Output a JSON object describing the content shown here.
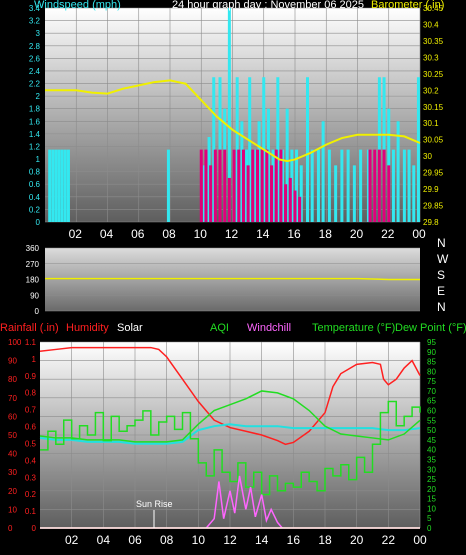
{
  "colors": {
    "wind": "#33e8f0",
    "wind_avg": "#ff00ff",
    "gust_fill": "#e0007a",
    "baro": "#f0f000",
    "dir": "#f0f000",
    "rain": "#ff2020",
    "humidity": "#ff2020",
    "solar": "#ffffff",
    "aqi": "#22dd22",
    "windchill": "#ff66ff",
    "temperature": "#22dd22",
    "dewpoint": "#22e0e0",
    "dew_label": "#22dd22"
  },
  "hour_labels": [
    "02",
    "04",
    "06",
    "08",
    "10",
    "12",
    "14",
    "16",
    "18",
    "20",
    "22",
    "00"
  ],
  "hour_positions": [
    2,
    4,
    6,
    8,
    10,
    12,
    14,
    16,
    18,
    20,
    22,
    24
  ],
  "chart_data": [
    {
      "type": "bar",
      "title": "24 hour graph day : November 06 2025",
      "ylabel": "Windspeed (mph)",
      "y2label": "Barometer (.in)",
      "ylim": [
        0,
        3.4
      ],
      "y2lim": [
        29.8,
        30.45
      ],
      "yticks": [
        "0",
        "0.2",
        "0.4",
        "0.6",
        "0.8",
        "1",
        "1.2",
        "1.4",
        "1.6",
        "1.8",
        "2",
        "2.2",
        "2.4",
        "2.6",
        "2.8",
        "3",
        "3.2",
        "3.4"
      ],
      "y2ticks": [
        "29.8",
        "29.85",
        "29.9",
        "29.95",
        "30",
        "30.05",
        "30.1",
        "30.15",
        "30.2",
        "30.25",
        "30.3",
        "30.35",
        "30.4",
        "30.45"
      ],
      "grid": true,
      "series": [
        {
          "kind": "gust",
          "x": [
            0.3,
            0.5,
            0.7,
            0.9,
            1.1,
            1.3,
            1.5,
            7.9,
            10.2,
            10.5,
            10.8,
            11.2,
            11.5,
            11.8,
            12.1,
            12.3,
            12.6,
            12.9,
            13.1,
            13.4,
            13.7,
            14.0,
            14.3,
            14.6,
            14.9,
            15.2,
            15.5,
            15.8,
            16.1,
            16.4,
            16.8,
            17.1,
            17.5,
            17.8,
            18.2,
            18.6,
            19.0,
            19.4,
            19.8,
            20.2,
            20.7,
            21.1,
            21.4,
            21.7,
            22.0,
            22.3,
            22.6,
            23.0,
            23.3,
            23.6,
            23.9
          ],
          "values": [
            1.15,
            1.15,
            1.15,
            1.15,
            1.15,
            1.15,
            1.15,
            1.15,
            0.9,
            1.35,
            2.3,
            2.3,
            1.8,
            3.4,
            1.15,
            2.3,
            1.6,
            1.15,
            2.3,
            1.15,
            1.6,
            2.3,
            1.8,
            1.15,
            2.3,
            1.15,
            1.8,
            1.15,
            1.15,
            0.9,
            2.3,
            1.15,
            1.15,
            1.6,
            1.15,
            0.9,
            1.15,
            1.15,
            0.9,
            1.15,
            1.15,
            1.15,
            2.3,
            2.3,
            1.8,
            1.15,
            1.6,
            1.15,
            1.15,
            0.9,
            2.3
          ]
        },
        {
          "kind": "avg",
          "x": [
            10.0,
            10.3,
            10.6,
            10.9,
            11.2,
            11.5,
            11.8,
            12.1,
            12.4,
            12.7,
            13.0,
            13.3,
            13.6,
            13.9,
            14.2,
            14.5,
            14.8,
            15.1,
            15.4,
            15.7,
            16.0,
            16.3,
            20.8,
            21.1,
            21.4,
            21.7,
            22.0
          ],
          "values": [
            1.15,
            1.15,
            0.9,
            1.15,
            1.15,
            1.15,
            0.7,
            1.15,
            1.15,
            1.15,
            0.9,
            1.15,
            1.15,
            1.15,
            1.15,
            0.9,
            1.15,
            1.15,
            0.6,
            0.7,
            0.5,
            0.4,
            1.15,
            1.15,
            1.15,
            1.15,
            0.9
          ]
        },
        {
          "kind": "baro",
          "x": [
            0,
            1,
            2,
            3,
            4,
            5,
            6,
            7,
            8,
            8.5,
            9,
            10,
            11,
            12,
            13,
            14,
            15,
            15.5,
            16,
            17,
            18,
            19,
            20,
            21,
            22,
            23,
            23.5,
            24
          ],
          "values": [
            30.2,
            30.2,
            30.2,
            30.193,
            30.19,
            30.205,
            30.215,
            30.225,
            30.23,
            30.225,
            30.22,
            30.17,
            30.12,
            30.08,
            30.05,
            30.02,
            29.99,
            29.985,
            29.99,
            30.01,
            30.035,
            30.055,
            30.065,
            30.065,
            30.065,
            30.06,
            30.05,
            30.04
          ]
        }
      ]
    },
    {
      "type": "line",
      "ylabel": "",
      "ylim": [
        0,
        360
      ],
      "yticks": [
        "0",
        "90",
        "180",
        "270",
        "360"
      ],
      "compass": [
        "N",
        "W",
        "S",
        "E",
        "N"
      ],
      "x": [
        0,
        12,
        20,
        22,
        24
      ],
      "values": [
        185,
        185,
        185,
        180,
        180
      ]
    },
    {
      "type": "line",
      "legend": [
        "Rainfall (.in)",
        "Humidity",
        "Solar",
        "AQI",
        "Windchill",
        "Temperature (°F)",
        "Dew Point (°F)"
      ],
      "y1lim": [
        0,
        1.1
      ],
      "y1ticks": [
        "0",
        "0.1",
        "0.2",
        "0.3",
        "0.4",
        "0.5",
        "0.6",
        "0.7",
        "0.8",
        "0.9",
        "1",
        "1.1"
      ],
      "y2lim": [
        0,
        100
      ],
      "y2ticks": [
        "0",
        "10",
        "20",
        "30",
        "40",
        "50",
        "60",
        "70",
        "80",
        "90",
        "100"
      ],
      "y3lim": [
        0,
        95
      ],
      "y3ticks": [
        "0",
        "5",
        "10",
        "15",
        "20",
        "25",
        "30",
        "35",
        "40",
        "45",
        "50",
        "55",
        "60",
        "65",
        "70",
        "75",
        "80",
        "85",
        "90",
        "95"
      ],
      "annotation": "Sun Rise",
      "annotation_x": 7.2,
      "grid": true,
      "series": [
        {
          "name": "Humidity",
          "axis": "y2",
          "x": [
            0,
            1,
            2,
            3,
            4,
            5,
            6,
            7,
            7.5,
            8,
            9,
            10,
            11,
            12,
            13,
            14,
            15,
            15.5,
            16,
            17,
            18,
            18.5,
            19,
            20,
            21,
            21.5,
            21.7,
            22,
            22.5,
            23,
            23.5,
            24
          ],
          "values": [
            95,
            96,
            97,
            97,
            97,
            97,
            97,
            97,
            96,
            92,
            80,
            68,
            58,
            54,
            52,
            50,
            47,
            45,
            46,
            52,
            62,
            76,
            83,
            88,
            89,
            88,
            80,
            77,
            80,
            86,
            90,
            82
          ]
        },
        {
          "name": "Dew Point (°F)",
          "axis": "y3",
          "x": [
            0,
            1,
            2,
            3,
            4,
            5,
            6,
            7,
            8,
            9,
            10,
            11,
            12,
            13,
            14,
            15,
            16,
            17,
            18,
            19,
            20,
            21,
            22,
            23,
            24
          ],
          "values": [
            46,
            45,
            45,
            44,
            44,
            44,
            43,
            43,
            43,
            44,
            50,
            52,
            53,
            52,
            52,
            52,
            51,
            51,
            51,
            51,
            51,
            51,
            50,
            50,
            51
          ]
        },
        {
          "name": "Temperature (°F)",
          "axis": "y3",
          "x": [
            0,
            1,
            2,
            3,
            4,
            5,
            6,
            7,
            8,
            9,
            10,
            11,
            12,
            13,
            14,
            15,
            16,
            17,
            18,
            19,
            20,
            21,
            22,
            23,
            24
          ],
          "values": [
            47,
            46,
            46,
            45,
            45,
            45,
            44,
            44,
            44,
            45,
            53,
            60,
            63,
            66,
            70,
            69,
            66,
            60,
            52,
            48,
            47,
            46,
            45,
            48,
            55
          ]
        },
        {
          "name": "AQI",
          "axis": "y2",
          "x": [
            0,
            0.5,
            1,
            1.5,
            2,
            2.5,
            3,
            3.5,
            4,
            4.5,
            5,
            5.5,
            6,
            6.5,
            7,
            7.5,
            8,
            8.5,
            9,
            9.5,
            10,
            10.5,
            11,
            11.5,
            12,
            12.5,
            13,
            13.5,
            14,
            14.5,
            15,
            15.5,
            16,
            16.5,
            17,
            17.5,
            18,
            18.5,
            19,
            19.5,
            20,
            20.5,
            21,
            21.5,
            22,
            22.5,
            23,
            23.5,
            24
          ],
          "values": [
            42,
            52,
            45,
            58,
            48,
            55,
            50,
            62,
            47,
            60,
            52,
            55,
            58,
            63,
            50,
            57,
            60,
            53,
            62,
            48,
            35,
            28,
            42,
            30,
            25,
            35,
            22,
            30,
            18,
            28,
            20,
            24,
            22,
            30,
            25,
            20,
            32,
            28,
            34,
            26,
            38,
            30,
            45,
            62,
            68,
            55,
            60,
            65,
            62
          ]
        },
        {
          "name": "Windchill",
          "axis": "y2",
          "x": [
            10.5,
            11,
            11.3,
            11.6,
            12,
            12.3,
            12.6,
            13,
            13.3,
            13.6,
            14,
            14.3,
            14.6,
            15,
            15.3
          ],
          "values": [
            0,
            5,
            25,
            5,
            20,
            8,
            28,
            10,
            22,
            6,
            18,
            4,
            10,
            3,
            0
          ]
        },
        {
          "name": "Rainfall (.in)",
          "axis": "y1",
          "x": [
            0,
            24
          ],
          "values": [
            0,
            0
          ]
        },
        {
          "name": "Solar",
          "axis": "y2",
          "x": [
            0,
            24
          ],
          "values": [
            0,
            0
          ]
        }
      ]
    }
  ]
}
